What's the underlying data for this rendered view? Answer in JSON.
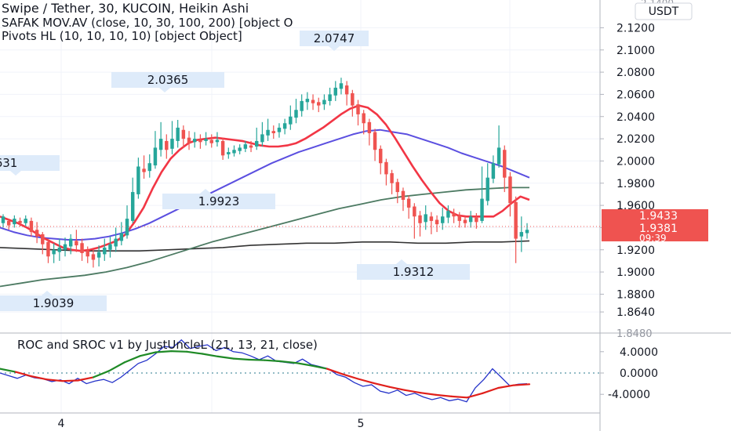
{
  "header": {
    "line1": "Swipe / Tether, 30, KUCOIN, Heikin Ashi",
    "line2": "SAFAK  MOV.AV (close, 10, 30, 100, 200) [object O",
    "line3": "Pivots HL (10, 10, 10, 10) [object Object]"
  },
  "currency_badge": "USDT",
  "price_badges": {
    "last": "1.9433",
    "current": "1.9381",
    "countdown": "09:39"
  },
  "pivot_labels": [
    {
      "text": "2.0747",
      "kind": "high"
    },
    {
      "text": "2.0365",
      "kind": "high"
    },
    {
      "text": "1.9923",
      "kind": "low"
    },
    {
      "text": "1.9312",
      "kind": "low"
    },
    {
      "text": "1.9039",
      "kind": "low"
    },
    {
      "text": "631",
      "kind": "high"
    }
  ],
  "indicator_title": "ROC and SROC v1 by JustUncleL (21, 13, 21, close)",
  "x_axis_labels": [
    "4",
    "5"
  ],
  "chart_data": [
    {
      "type": "candlestick",
      "title": "Swipe / Tether, 30, KUCOIN, Heikin Ashi",
      "y_ticks": [
        "2.1200",
        "2.1000",
        "2.0800",
        "2.0600",
        "2.0400",
        "2.0200",
        "2.0000",
        "1.9800",
        "1.9600",
        "1.9400",
        "1.9200",
        "1.9000",
        "1.8800",
        "1.8640"
      ],
      "y_tick_values": [
        2.12,
        2.1,
        2.08,
        2.06,
        2.04,
        2.02,
        2.0,
        1.98,
        1.96,
        1.94,
        1.92,
        1.9,
        1.88,
        1.864
      ],
      "y_cut_top": "2.1400",
      "y_cut_bottom": "1.8480",
      "ylim": [
        1.845,
        2.145
      ],
      "colors": {
        "up": "#26a69a",
        "down": "#ef5350",
        "ma10": "#f23645",
        "ma30": "#5b4fe0",
        "ma100": "#4c7a62",
        "ma200": "#333333"
      },
      "candles": [
        [
          1.944,
          1.95,
          1.94,
          1.952
        ],
        [
          1.946,
          1.942,
          1.938,
          1.948
        ],
        [
          1.943,
          1.948,
          1.94,
          1.951
        ],
        [
          1.946,
          1.944,
          1.941,
          1.949
        ],
        [
          1.944,
          1.948,
          1.941,
          1.951
        ],
        [
          1.946,
          1.936,
          1.932,
          1.949
        ],
        [
          1.938,
          1.932,
          1.926,
          1.945
        ],
        [
          1.934,
          1.925,
          1.916,
          1.936
        ],
        [
          1.927,
          1.914,
          1.908,
          1.93
        ],
        [
          1.916,
          1.92,
          1.908,
          1.926
        ],
        [
          1.918,
          1.922,
          1.91,
          1.93
        ],
        [
          1.92,
          1.925,
          1.914,
          1.931
        ],
        [
          1.923,
          1.93,
          1.916,
          1.934
        ],
        [
          1.928,
          1.924,
          1.918,
          1.938
        ],
        [
          1.926,
          1.917,
          1.91,
          1.93
        ],
        [
          1.919,
          1.914,
          1.908,
          1.923
        ],
        [
          1.916,
          1.911,
          1.904,
          1.92
        ],
        [
          1.913,
          1.918,
          1.905,
          1.924
        ],
        [
          1.916,
          1.922,
          1.91,
          1.93
        ],
        [
          1.92,
          1.925,
          1.913,
          1.932
        ],
        [
          1.923,
          1.93,
          1.918,
          1.94
        ],
        [
          1.928,
          1.935,
          1.924,
          1.945
        ],
        [
          1.933,
          1.948,
          1.93,
          1.96
        ],
        [
          1.946,
          1.972,
          1.944,
          1.985
        ],
        [
          1.97,
          1.995,
          1.966,
          2.003
        ],
        [
          1.993,
          1.99,
          1.984,
          2.005
        ],
        [
          1.991,
          1.998,
          1.985,
          2.006
        ],
        [
          1.996,
          2.012,
          1.993,
          2.027
        ],
        [
          2.01,
          2.02,
          2.004,
          2.035
        ],
        [
          2.018,
          2.01,
          2.002,
          2.024
        ],
        [
          2.011,
          2.02,
          2.006,
          2.036
        ],
        [
          2.018,
          2.03,
          2.012,
          2.037
        ],
        [
          2.028,
          2.02,
          2.012,
          2.032
        ],
        [
          2.021,
          2.016,
          2.01,
          2.027
        ],
        [
          2.017,
          2.02,
          2.012,
          2.026
        ],
        [
          2.019,
          2.017,
          2.011,
          2.024
        ],
        [
          2.018,
          2.02,
          2.014,
          2.026
        ],
        [
          2.019,
          2.016,
          2.012,
          2.024
        ],
        [
          2.017,
          2.019,
          2.013,
          2.026
        ],
        [
          2.018,
          2.005,
          2.001,
          2.021
        ],
        [
          2.006,
          2.008,
          2.002,
          2.012
        ],
        [
          2.007,
          2.01,
          2.004,
          2.014
        ],
        [
          2.009,
          2.012,
          2.006,
          2.015
        ],
        [
          2.011,
          2.015,
          2.008,
          2.018
        ],
        [
          2.014,
          2.012,
          2.008,
          2.018
        ],
        [
          2.013,
          2.018,
          2.01,
          2.03
        ],
        [
          2.017,
          2.024,
          2.013,
          2.035
        ],
        [
          2.023,
          2.028,
          2.018,
          2.038
        ],
        [
          2.027,
          2.025,
          2.02,
          2.032
        ],
        [
          2.026,
          2.03,
          2.021,
          2.034
        ],
        [
          2.029,
          2.034,
          2.024,
          2.038
        ],
        [
          2.033,
          2.04,
          2.028,
          2.05
        ],
        [
          2.039,
          2.046,
          2.034,
          2.056
        ],
        [
          2.045,
          2.054,
          2.04,
          2.06
        ],
        [
          2.053,
          2.056,
          2.046,
          2.062
        ],
        [
          2.055,
          2.052,
          2.046,
          2.06
        ],
        [
          2.053,
          2.05,
          2.044,
          2.057
        ],
        [
          2.051,
          2.055,
          2.046,
          2.06
        ],
        [
          2.054,
          2.06,
          2.05,
          2.066
        ],
        [
          2.059,
          2.066,
          2.054,
          2.072
        ],
        [
          2.065,
          2.07,
          2.06,
          2.075
        ],
        [
          2.068,
          2.06,
          2.05,
          2.072
        ],
        [
          2.061,
          2.05,
          2.04,
          2.064
        ],
        [
          2.051,
          2.042,
          2.032,
          2.055
        ],
        [
          2.043,
          2.034,
          2.024,
          2.046
        ],
        [
          2.035,
          2.025,
          2.014,
          2.038
        ],
        [
          2.026,
          2.01,
          2.0,
          2.029
        ],
        [
          2.011,
          1.998,
          1.988,
          2.014
        ],
        [
          1.999,
          1.988,
          1.978,
          2.002
        ],
        [
          1.989,
          1.98,
          1.97,
          1.992
        ],
        [
          1.981,
          1.972,
          1.962,
          1.984
        ],
        [
          1.973,
          1.965,
          1.955,
          1.976
        ],
        [
          1.966,
          1.958,
          1.948,
          1.969
        ],
        [
          1.959,
          1.95,
          1.93,
          1.962
        ],
        [
          1.951,
          1.944,
          1.932,
          1.955
        ],
        [
          1.945,
          1.952,
          1.938,
          1.96
        ],
        [
          1.95,
          1.946,
          1.934,
          1.954
        ],
        [
          1.947,
          1.943,
          1.936,
          1.951
        ],
        [
          1.944,
          1.95,
          1.938,
          1.958
        ],
        [
          1.949,
          1.955,
          1.944,
          1.96
        ],
        [
          1.953,
          1.95,
          1.944,
          1.957
        ],
        [
          1.951,
          1.946,
          1.94,
          1.954
        ],
        [
          1.947,
          1.944,
          1.94,
          1.95
        ],
        [
          1.945,
          1.95,
          1.94,
          1.955
        ],
        [
          1.949,
          1.945,
          1.939,
          1.953
        ],
        [
          1.946,
          1.966,
          1.944,
          1.995
        ],
        [
          1.964,
          1.985,
          1.96,
          1.998
        ],
        [
          1.984,
          1.998,
          1.98,
          2.005
        ],
        [
          1.997,
          2.012,
          1.994,
          2.032
        ],
        [
          2.01,
          1.985,
          1.972,
          2.014
        ],
        [
          1.986,
          1.962,
          1.95,
          1.99
        ],
        [
          1.963,
          1.93,
          1.908,
          1.968
        ],
        [
          1.932,
          1.936,
          1.918,
          1.95
        ],
        [
          1.935,
          1.938,
          1.93,
          1.944
        ]
      ],
      "ma10": [
        1.95,
        1.947,
        1.944,
        1.94,
        1.935,
        1.93,
        1.926,
        1.922,
        1.92,
        1.919,
        1.92,
        1.922,
        1.925,
        1.928,
        1.934,
        1.945,
        1.958,
        1.975,
        1.99,
        2.002,
        2.01,
        2.016,
        2.019,
        2.02,
        2.021,
        2.02,
        2.019,
        2.018,
        2.016,
        2.014,
        2.013,
        2.013,
        2.014,
        2.016,
        2.02,
        2.025,
        2.03,
        2.036,
        2.042,
        2.047,
        2.05,
        2.048,
        2.042,
        2.033,
        2.021,
        2.008,
        1.995,
        1.983,
        1.972,
        1.962,
        1.955,
        1.951,
        1.95,
        1.95,
        1.95,
        1.95,
        1.955,
        1.962,
        1.968,
        1.965
      ],
      "ma30": [
        1.94,
        1.936,
        1.933,
        1.931,
        1.93,
        1.929,
        1.929,
        1.93,
        1.932,
        1.935,
        1.939,
        1.944,
        1.95,
        1.956,
        1.962,
        1.968,
        1.974,
        1.98,
        1.986,
        1.992,
        1.998,
        2.003,
        2.008,
        2.012,
        2.016,
        2.02,
        2.024,
        2.027,
        2.028,
        2.026,
        2.024,
        2.02,
        2.016,
        2.012,
        2.007,
        2.003,
        1.999,
        1.995,
        1.99,
        1.985
      ],
      "ma100": [
        1.887,
        1.89,
        1.893,
        1.895,
        1.897,
        1.9,
        1.904,
        1.909,
        1.915,
        1.921,
        1.927,
        1.932,
        1.937,
        1.942,
        1.947,
        1.952,
        1.957,
        1.961,
        1.965,
        1.968,
        1.97,
        1.972,
        1.974,
        1.975,
        1.976,
        1.976
      ],
      "ma200": [
        1.922,
        1.921,
        1.92,
        1.919,
        1.919,
        1.919,
        1.92,
        1.921,
        1.922,
        1.924,
        1.925,
        1.926,
        1.926,
        1.927,
        1.927,
        1.926,
        1.926,
        1.927,
        1.927,
        1.928
      ]
    },
    {
      "type": "line",
      "title": "ROC and SROC v1 by JustUncleL (21, 13, 21, close)",
      "y_ticks": [
        "4.0000",
        "0.0000",
        "-4.0000"
      ],
      "y_tick_values": [
        4,
        0,
        -4
      ],
      "ylim": [
        -7.5,
        7.5
      ],
      "series": [
        {
          "values": [
            0.0,
            -0.5,
            -1.0,
            -0.4,
            -0.9,
            -1.1,
            -1.6,
            -1.3,
            -2.0,
            -1.0,
            -2.0,
            -1.5,
            -1.2,
            -1.8,
            -0.8,
            0.5,
            1.8,
            2.4,
            3.6,
            5.0,
            4.8,
            6.2,
            4.6,
            5.0,
            5.3,
            4.2,
            4.8,
            4.0,
            3.8,
            3.2,
            2.5,
            3.2,
            2.2,
            2.0,
            1.8,
            2.6,
            1.6,
            1.2,
            0.8,
            -0.3,
            -0.8,
            -1.8,
            -2.5,
            -2.2,
            -3.4,
            -3.8,
            -3.2,
            -4.2,
            -3.8,
            -4.5,
            -5.0,
            -4.6,
            -5.2,
            -4.9,
            -5.4,
            -2.8,
            -1.2,
            0.8,
            -0.8,
            -2.4,
            -2.1,
            -2.0
          ]
        },
        {
          "values": [
            0.8,
            0.2,
            -0.6,
            -1.2,
            -1.5,
            -1.4,
            -0.8,
            0.4,
            2.0,
            3.2,
            3.9,
            4.1,
            4.0,
            3.6,
            3.1,
            2.7,
            2.5,
            2.4,
            2.2,
            1.9,
            1.4,
            0.8,
            -0.2,
            -1.1,
            -1.9,
            -2.6,
            -3.2,
            -3.7,
            -4.1,
            -4.4,
            -4.6,
            -3.8,
            -2.8,
            -2.3,
            -2.1
          ]
        }
      ]
    }
  ]
}
